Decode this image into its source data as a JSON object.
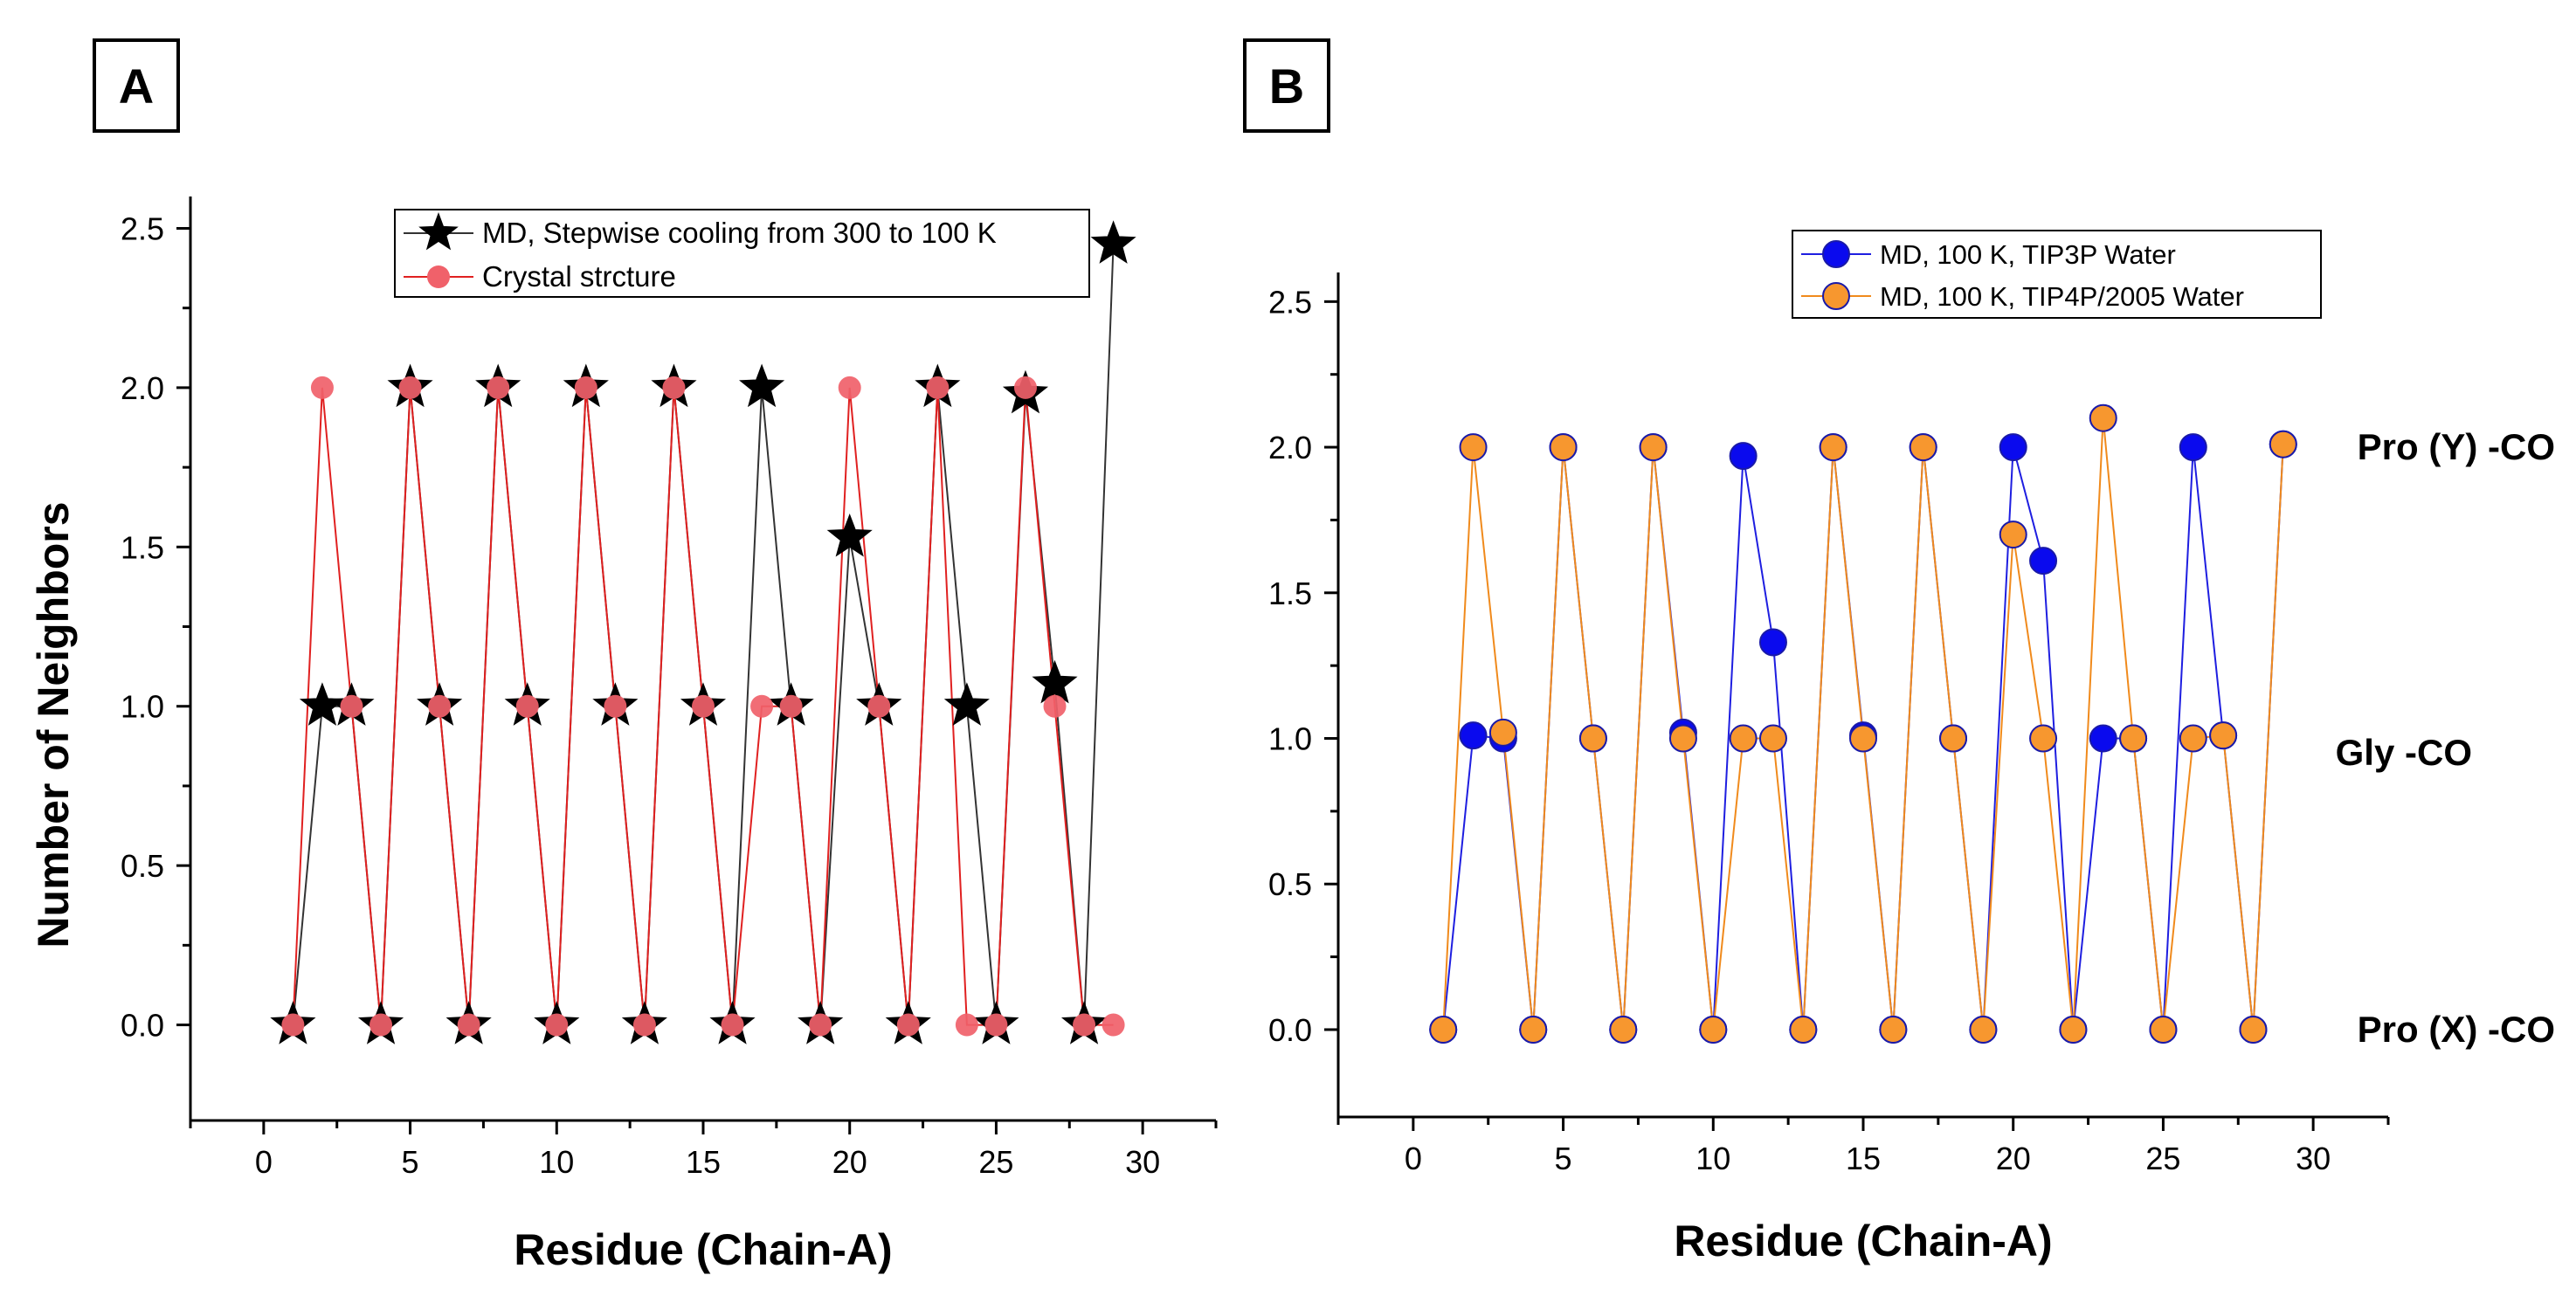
{
  "chart_data": [
    {
      "panel": "A",
      "type": "line",
      "xlabel": "Residue (Chain-A)",
      "ylabel": "Number of Neighbors",
      "xlim": [
        -2.5,
        32.5
      ],
      "ylim": [
        -0.3,
        2.6
      ],
      "xticks": [
        0,
        5,
        10,
        15,
        20,
        25,
        30
      ],
      "yticks": [
        0.0,
        0.5,
        1.0,
        1.5,
        2.0,
        2.5
      ],
      "xtick_labels": [
        "0",
        "5",
        "10",
        "15",
        "20",
        "25",
        "30"
      ],
      "ytick_labels": [
        "0.0",
        "0.5",
        "1.0",
        "1.5",
        "2.0",
        "2.5"
      ],
      "legend_position": "top-center",
      "series": [
        {
          "name": "MD, Stepwise cooling from 300 to 100 K",
          "marker": "star",
          "color": "#000000",
          "line_color": "#333333",
          "x": [
            1,
            2,
            3,
            4,
            5,
            6,
            7,
            8,
            9,
            10,
            11,
            12,
            13,
            14,
            15,
            16,
            17,
            18,
            19,
            20,
            21,
            22,
            23,
            24,
            25,
            26,
            27,
            28,
            29
          ],
          "values": [
            0,
            1,
            1,
            0,
            2,
            1,
            0,
            2,
            1,
            0,
            2,
            1,
            0,
            2,
            1,
            0,
            2,
            1,
            0,
            1.53,
            1,
            0,
            2,
            1,
            0,
            1.98,
            1.07,
            0,
            2.45
          ]
        },
        {
          "name": "Crystal strcture",
          "marker": "circle",
          "color": "#f0616a",
          "line_color": "#e02020",
          "x": [
            1,
            2,
            3,
            4,
            5,
            6,
            7,
            8,
            9,
            10,
            11,
            12,
            13,
            14,
            15,
            16,
            17,
            18,
            19,
            20,
            21,
            22,
            23,
            24,
            25,
            26,
            27,
            28,
            29
          ],
          "values": [
            0,
            2,
            1,
            0,
            2,
            1,
            0,
            2,
            1,
            0,
            2,
            1,
            0,
            2,
            1,
            0,
            1,
            1,
            0,
            2,
            1,
            0,
            2,
            0,
            0,
            2,
            1,
            0,
            0
          ]
        }
      ]
    },
    {
      "panel": "B",
      "type": "line",
      "xlabel": "Residue (Chain-A)",
      "ylabel": "",
      "xlim": [
        -2.5,
        32.5
      ],
      "ylim": [
        -0.3,
        2.6
      ],
      "xticks": [
        0,
        5,
        10,
        15,
        20,
        25,
        30
      ],
      "yticks": [
        0.0,
        0.5,
        1.0,
        1.5,
        2.0,
        2.5
      ],
      "xtick_labels": [
        "0",
        "5",
        "10",
        "15",
        "20",
        "25",
        "30"
      ],
      "ytick_labels": [
        "0.0",
        "0.5",
        "1.0",
        "1.5",
        "2.0",
        "2.5"
      ],
      "legend_position": "top-center",
      "annotations": [
        "Pro (Y) -CO",
        "Gly -CO",
        "Pro (X) -CO"
      ],
      "series": [
        {
          "name": "MD, 100 K, TIP3P  Water",
          "marker": "circle",
          "color": "#0a0aee",
          "line_color": "#1e1ee0",
          "x": [
            1,
            2,
            3,
            4,
            5,
            6,
            7,
            8,
            9,
            10,
            11,
            12,
            13,
            14,
            15,
            16,
            17,
            18,
            19,
            20,
            21,
            22,
            23,
            24,
            25,
            26,
            27,
            28,
            29
          ],
          "values": [
            0,
            1.01,
            1,
            0,
            2,
            1,
            0,
            2,
            1.02,
            0,
            1.97,
            1.33,
            0,
            2,
            1.01,
            0,
            2,
            1,
            0,
            2,
            1.61,
            0,
            1,
            1,
            0,
            2,
            1.01,
            0,
            2.01
          ]
        },
        {
          "name": "MD, 100 K, TIP4P/2005 Water",
          "marker": "circle",
          "color": "#f7972f",
          "line_color": "#f08a1c",
          "x": [
            1,
            2,
            3,
            4,
            5,
            6,
            7,
            8,
            9,
            10,
            11,
            12,
            13,
            14,
            15,
            16,
            17,
            18,
            19,
            20,
            21,
            22,
            23,
            24,
            25,
            26,
            27,
            28,
            29
          ],
          "values": [
            0,
            2,
            1.02,
            0,
            2,
            1,
            0,
            2,
            1,
            0,
            1,
            1,
            0,
            2,
            1,
            0,
            2,
            1,
            0,
            1.7,
            1,
            0,
            2.1,
            1,
            0,
            1,
            1.01,
            0,
            2.01
          ]
        }
      ]
    }
  ]
}
